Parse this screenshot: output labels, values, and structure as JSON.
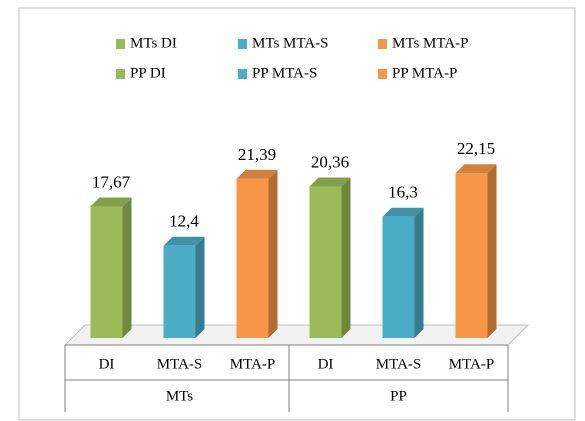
{
  "chart_data": {
    "type": "bar",
    "categories": [
      "DI",
      "MTA-S",
      "MTA-P",
      "DI",
      "MTA-S",
      "MTA-P"
    ],
    "groups": [
      {
        "name": "MTs",
        "span": 3
      },
      {
        "name": "PP",
        "span": 3
      }
    ],
    "series": [
      {
        "name": "MTs DI",
        "color": "#9bbb59",
        "values": [
          17.67,
          null,
          null,
          null,
          null,
          null
        ],
        "value_labels": [
          "17,67",
          null,
          null,
          null,
          null,
          null
        ]
      },
      {
        "name": "MTs MTA-S",
        "color": "#4bacc6",
        "values": [
          null,
          12.4,
          null,
          null,
          null,
          null
        ],
        "value_labels": [
          null,
          "12,4",
          null,
          null,
          null,
          null
        ]
      },
      {
        "name": "MTs MTA-P",
        "color": "#f79646",
        "values": [
          null,
          null,
          21.39,
          null,
          null,
          null
        ],
        "value_labels": [
          null,
          null,
          "21,39",
          null,
          null,
          null
        ]
      },
      {
        "name": "PP DI",
        "color": "#9bbb59",
        "values": [
          null,
          null,
          null,
          20.36,
          null,
          null
        ],
        "value_labels": [
          null,
          null,
          null,
          "20,36",
          null,
          null
        ]
      },
      {
        "name": "PP MTA-S",
        "color": "#4bacc6",
        "values": [
          null,
          null,
          null,
          null,
          16.3,
          null
        ],
        "value_labels": [
          null,
          null,
          null,
          null,
          "16,3",
          null
        ]
      },
      {
        "name": "PP MTA-P",
        "color": "#f79646",
        "values": [
          null,
          null,
          null,
          null,
          null,
          22.15
        ],
        "value_labels": [
          null,
          null,
          null,
          null,
          null,
          "22,15"
        ]
      }
    ],
    "ylim": [
      0,
      25
    ],
    "legend": "top"
  }
}
